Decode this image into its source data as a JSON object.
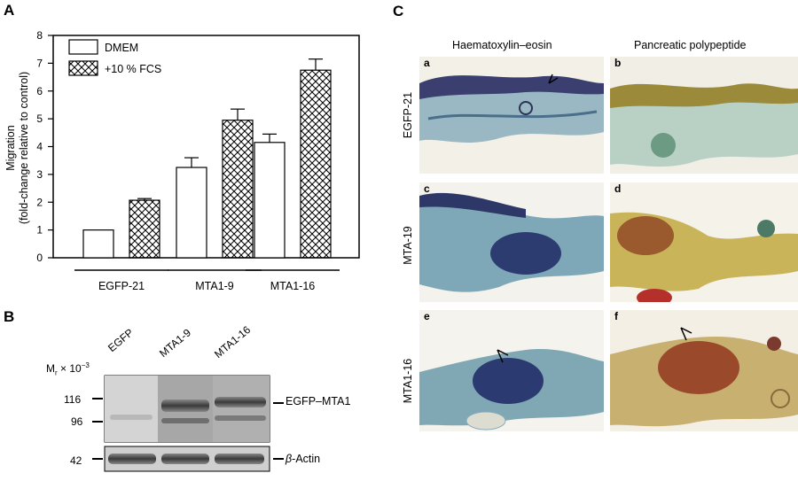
{
  "panels": {
    "a": "A",
    "b": "B",
    "c": "C"
  },
  "chart_data": {
    "type": "bar",
    "title": "",
    "ylabel": "Migration\n(fold-change relative to control)",
    "ylabel_line1": "Migration",
    "ylabel_line2": "(fold-change relative to control)",
    "ylim": [
      0,
      8
    ],
    "yticks": [
      "0",
      "1",
      "2",
      "3",
      "4",
      "5",
      "6",
      "7",
      "8"
    ],
    "categories": [
      "EGFP-21",
      "MTA1-9",
      "MTA1-16"
    ],
    "series": [
      {
        "name": "DMEM",
        "values": [
          1.0,
          3.25,
          4.15
        ],
        "errors": [
          0,
          0.35,
          0.3
        ],
        "pattern": "open"
      },
      {
        "name": "+10 % FCS",
        "values": [
          2.07,
          4.95,
          6.75
        ],
        "errors": [
          0.06,
          0.4,
          0.4
        ],
        "pattern": "crosshatch"
      }
    ],
    "legend_position": "top-left"
  },
  "blot": {
    "mr_label": "M",
    "mr_sub": "r",
    "mr_suffix": " × 10",
    "mr_exp": "−3",
    "lanes": [
      "EGFP",
      "MTA1-9",
      "MTA1-16"
    ],
    "markers": [
      "116",
      "96",
      "42"
    ],
    "band_egfp": "EGFP–MTA1",
    "band_actin_greek": "β",
    "band_actin_rest": "-Actin"
  },
  "histology": {
    "col1_title": "Haematoxylin–eosin",
    "col2_title": "Pancreatic polypeptide",
    "rows": [
      "EGFP-21",
      "MTA-19",
      "MTA1-16"
    ],
    "tags": [
      "a",
      "b",
      "c",
      "d",
      "e",
      "f"
    ]
  }
}
